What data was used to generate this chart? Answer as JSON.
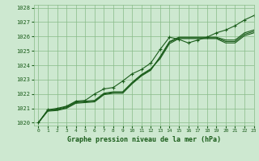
{
  "bg_color": "#cde8d0",
  "grid_color": "#88bb88",
  "line_color": "#1a5c1a",
  "marker_color": "#1a5c1a",
  "title": "Graphe pression niveau de la mer (hPa)",
  "xlim": [
    -0.5,
    23
  ],
  "ylim": [
    1019.8,
    1028.2
  ],
  "yticks": [
    1020,
    1021,
    1022,
    1023,
    1024,
    1025,
    1026,
    1027,
    1028
  ],
  "xticks": [
    0,
    1,
    2,
    3,
    4,
    5,
    6,
    7,
    8,
    9,
    10,
    11,
    12,
    13,
    14,
    15,
    16,
    17,
    18,
    19,
    20,
    21,
    22,
    23
  ],
  "series": [
    {
      "x": [
        0,
        1,
        2,
        3,
        4,
        5,
        6,
        7,
        8,
        9,
        10,
        11,
        12,
        13,
        14,
        15,
        16,
        17,
        18,
        19,
        20,
        21,
        22,
        23
      ],
      "y": [
        1020.0,
        1020.9,
        1021.0,
        1021.15,
        1021.5,
        1021.55,
        1022.0,
        1022.35,
        1022.45,
        1022.9,
        1023.4,
        1023.7,
        1024.15,
        1025.1,
        1025.95,
        1025.8,
        1025.55,
        1025.75,
        1025.95,
        1026.25,
        1026.45,
        1026.75,
        1027.15,
        1027.45
      ],
      "has_markers": true
    },
    {
      "x": [
        0,
        1,
        2,
        3,
        4,
        5,
        6,
        7,
        8,
        9,
        10,
        11,
        12,
        13,
        14,
        15,
        16,
        17,
        18,
        19,
        20,
        21,
        22,
        23
      ],
      "y": [
        1020.0,
        1020.85,
        1020.95,
        1021.1,
        1021.45,
        1021.5,
        1021.55,
        1022.05,
        1022.15,
        1022.15,
        1022.8,
        1023.35,
        1023.75,
        1024.45,
        1025.5,
        1025.85,
        1025.85,
        1025.85,
        1025.85,
        1025.85,
        1025.55,
        1025.55,
        1026.05,
        1026.25
      ],
      "has_markers": false
    },
    {
      "x": [
        0,
        1,
        2,
        3,
        4,
        5,
        6,
        7,
        8,
        9,
        10,
        11,
        12,
        13,
        14,
        15,
        16,
        17,
        18,
        19,
        20,
        21,
        22,
        23
      ],
      "y": [
        1020.0,
        1020.85,
        1020.9,
        1021.05,
        1021.4,
        1021.45,
        1021.5,
        1022.0,
        1022.1,
        1022.1,
        1022.75,
        1023.3,
        1023.7,
        1024.55,
        1025.6,
        1025.9,
        1025.9,
        1025.9,
        1025.9,
        1025.9,
        1025.65,
        1025.65,
        1026.15,
        1026.35
      ],
      "has_markers": false
    },
    {
      "x": [
        0,
        1,
        2,
        3,
        4,
        5,
        6,
        7,
        8,
        9,
        10,
        11,
        12,
        13,
        14,
        15,
        16,
        17,
        18,
        19,
        20,
        21,
        22,
        23
      ],
      "y": [
        1020.0,
        1020.8,
        1020.85,
        1021.0,
        1021.35,
        1021.4,
        1021.45,
        1021.95,
        1022.05,
        1022.05,
        1022.7,
        1023.25,
        1023.65,
        1024.6,
        1025.65,
        1025.95,
        1025.95,
        1025.95,
        1025.95,
        1025.95,
        1025.75,
        1025.75,
        1026.25,
        1026.45
      ],
      "has_markers": false
    }
  ]
}
